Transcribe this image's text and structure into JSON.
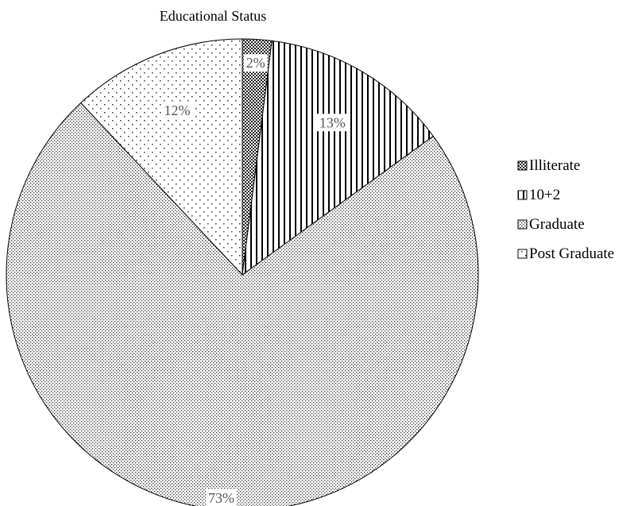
{
  "chart_data": {
    "type": "pie",
    "title": "Educational Status",
    "slices": [
      {
        "label": "Illiterate",
        "value": 2,
        "data_label": "2%",
        "pattern": "crosshatch-dark"
      },
      {
        "label": "10+2",
        "value": 13,
        "data_label": "13%",
        "pattern": "vertical-lines"
      },
      {
        "label": "Graduate",
        "value": 73,
        "data_label": "73%",
        "pattern": "dense-dots"
      },
      {
        "label": "Post Graduate",
        "value": 12,
        "data_label": "12%",
        "pattern": "sparse-dots"
      }
    ],
    "start_angle": "top",
    "direction": "clockwise",
    "legend": {
      "position": "right",
      "entries": [
        "Illiterate",
        "10+2",
        "Graduate",
        "Post Graduate"
      ]
    }
  }
}
